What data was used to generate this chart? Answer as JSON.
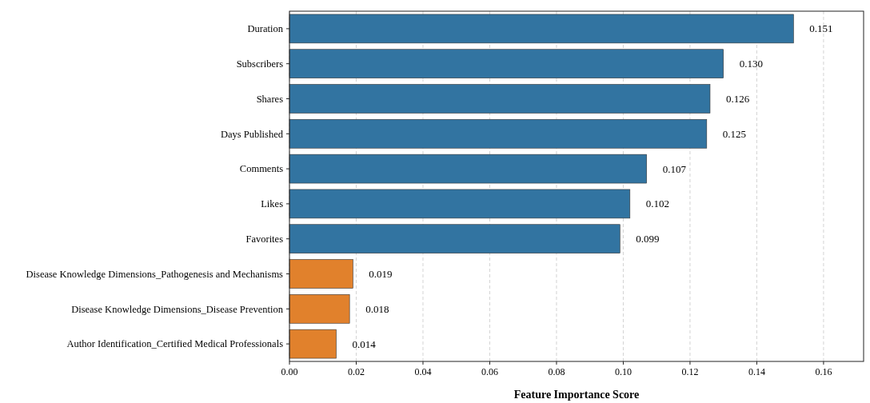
{
  "chart_data": {
    "type": "bar",
    "orientation": "horizontal",
    "xlabel": "Feature Importance Score",
    "categories": [
      "Duration",
      "Subscribers",
      "Shares",
      "Days Published",
      "Comments",
      "Likes",
      "Favorites",
      "Disease Knowledge Dimensions_Pathogenesis and Mechanisms",
      "Disease Knowledge Dimensions_Disease Prevention",
      "Author Identification_Certified Medical Professionals"
    ],
    "values": [
      0.151,
      0.13,
      0.126,
      0.125,
      0.107,
      0.102,
      0.099,
      0.019,
      0.018,
      0.014
    ],
    "colors": [
      "#3274a1",
      "#3274a1",
      "#3274a1",
      "#3274a1",
      "#3274a1",
      "#3274a1",
      "#3274a1",
      "#e1812c",
      "#e1812c",
      "#e1812c"
    ],
    "value_labels": [
      "0.151",
      "0.130",
      "0.126",
      "0.125",
      "0.107",
      "0.102",
      "0.099",
      "0.019",
      "0.018",
      "0.014"
    ],
    "xlim": [
      0,
      0.172
    ],
    "xticks": [
      {
        "value": 0,
        "label": "0.00"
      },
      {
        "value": 0.02,
        "label": "0.02"
      },
      {
        "value": 0.04,
        "label": "0.04"
      },
      {
        "value": 0.06,
        "label": "0.06"
      },
      {
        "value": 0.08,
        "label": "0.08"
      },
      {
        "value": 0.1,
        "label": "0.10"
      },
      {
        "value": 0.12,
        "label": "0.12"
      },
      {
        "value": 0.14,
        "label": "0.14"
      },
      {
        "value": 0.16,
        "label": "0.16"
      }
    ],
    "grid": "x"
  }
}
